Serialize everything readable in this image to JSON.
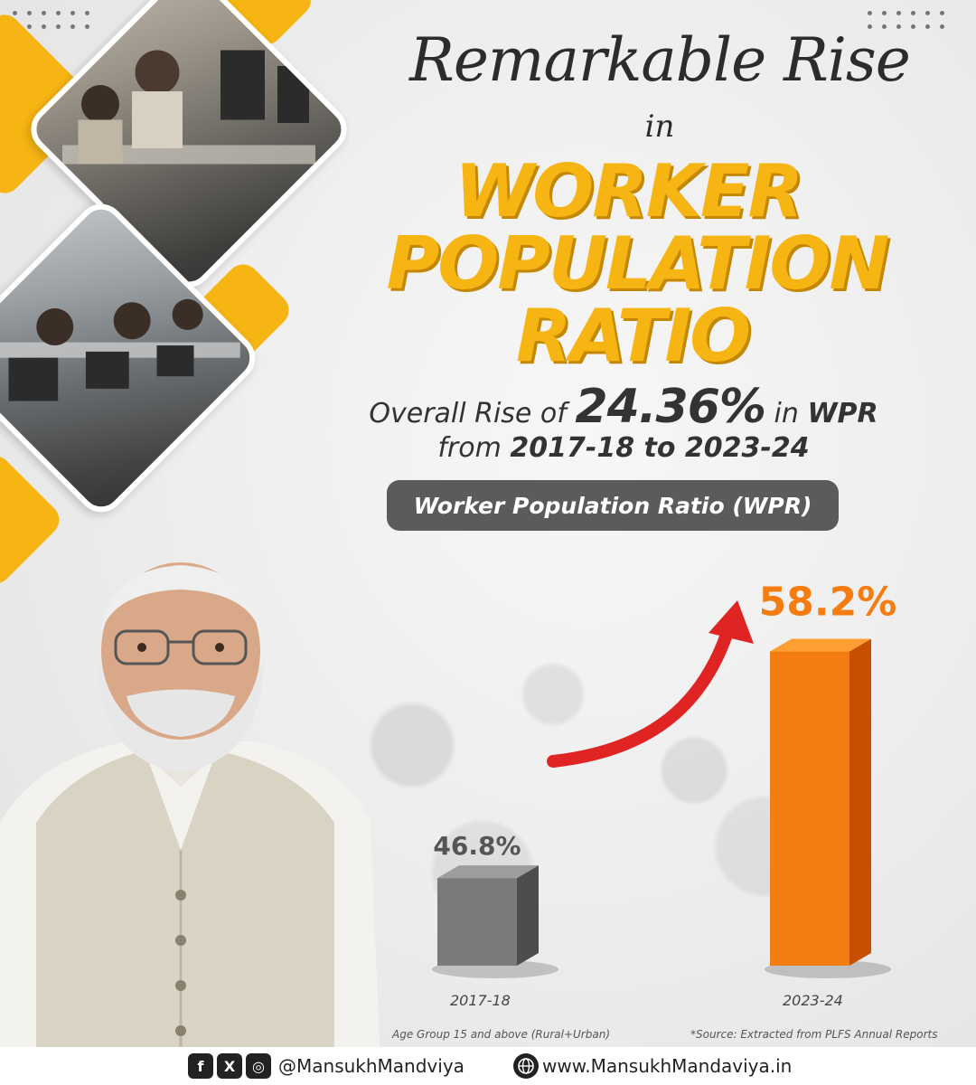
{
  "header": {
    "script_line": "Remarkable Rise",
    "connector": "in",
    "big_lines": [
      "WORKER",
      "POPULATION",
      "RATIO"
    ]
  },
  "summary": {
    "prefix": "Overall Rise of",
    "value": "24.36%",
    "mid": "in",
    "suffix": "WPR",
    "range_prefix": "from",
    "range_value": "2017-18 to 2023-24"
  },
  "pill_label": "Worker Population Ratio (WPR)",
  "chart_data": {
    "type": "bar",
    "categories": [
      "2017-18",
      "2023-24"
    ],
    "values": [
      46.8,
      58.2
    ],
    "data_labels": [
      "46.8%",
      "58.2%"
    ],
    "colors": [
      "#7a7a7a",
      "#f47c10"
    ],
    "label_colors": [
      "#555555",
      "#f47c10"
    ],
    "title": "Worker Population Ratio (WPR)",
    "ylim": [
      40,
      60
    ],
    "grid": false,
    "annotation": "trend-arrow"
  },
  "notes": {
    "age_group": "Age Group 15 and above (Rural+Urban)",
    "source": "*Source: Extracted from PLFS Annual Reports"
  },
  "footer": {
    "facebook_glyph": "f",
    "x_glyph": "X",
    "instagram_glyph": "◎",
    "handle": "@MansukhMandviya",
    "website": "www.MansukhMandaviya.in"
  },
  "colors": {
    "accent_yellow": "#f6b513",
    "orange": "#f47c10",
    "grey_bar": "#7a7a7a",
    "pill_bg": "#5b5b5b",
    "arrow_red": "#e02323"
  },
  "icons": [
    "facebook-icon",
    "x-icon",
    "instagram-icon",
    "globe-icon"
  ]
}
